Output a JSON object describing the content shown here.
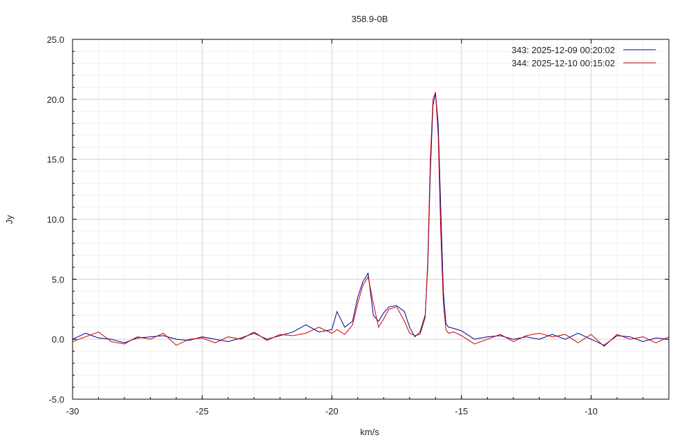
{
  "chart_data": {
    "type": "line",
    "title": "358.9-0B",
    "xlabel": "km/s",
    "ylabel": "Jy",
    "xlim": [
      -30,
      -7
    ],
    "ylim": [
      -5,
      25
    ],
    "x_ticks": [
      -30,
      -25,
      -20,
      -15,
      -10
    ],
    "x_tick_labels": [
      "-30",
      "-25",
      "-20",
      "-15",
      "-10"
    ],
    "y_ticks": [
      -5,
      0,
      5,
      10,
      15,
      20,
      25
    ],
    "y_tick_labels": [
      "-5.0",
      "0.0",
      "5.0",
      "10.0",
      "15.0",
      "20.0",
      "25.0"
    ],
    "grid": true,
    "legend_position": "top-right",
    "series": [
      {
        "name": "343:   2025-12-09 00:20:02",
        "color": "#00008b",
        "x": [
          -30.0,
          -29.5,
          -29.0,
          -28.5,
          -28.0,
          -27.5,
          -27.0,
          -26.5,
          -26.0,
          -25.5,
          -25.0,
          -24.5,
          -24.0,
          -23.5,
          -23.0,
          -22.5,
          -22.0,
          -21.5,
          -21.0,
          -20.5,
          -20.0,
          -19.8,
          -19.5,
          -19.2,
          -19.0,
          -18.8,
          -18.6,
          -18.4,
          -18.2,
          -18.0,
          -17.8,
          -17.5,
          -17.2,
          -17.0,
          -16.8,
          -16.6,
          -16.4,
          -16.3,
          -16.2,
          -16.1,
          -16.0,
          -15.9,
          -15.8,
          -15.7,
          -15.6,
          -15.5,
          -15.3,
          -15.0,
          -14.5,
          -14.0,
          -13.5,
          -13.0,
          -12.5,
          -12.0,
          -11.5,
          -11.0,
          -10.5,
          -10.0,
          -9.5,
          -9.0,
          -8.5,
          -8.0,
          -7.5,
          -7.0
        ],
        "y": [
          0.0,
          0.5,
          0.1,
          0.0,
          -0.3,
          0.1,
          0.2,
          0.3,
          0.0,
          -0.1,
          0.2,
          0.0,
          -0.2,
          0.1,
          0.5,
          0.0,
          0.3,
          0.6,
          1.2,
          0.6,
          0.8,
          2.3,
          1.0,
          1.5,
          3.5,
          4.8,
          5.5,
          2.0,
          1.5,
          2.2,
          2.7,
          2.8,
          2.3,
          1.0,
          0.2,
          0.6,
          2.0,
          6.0,
          14.0,
          19.5,
          20.5,
          18.0,
          11.0,
          4.0,
          1.3,
          1.0,
          0.9,
          0.7,
          0.0,
          0.2,
          0.3,
          0.0,
          0.2,
          0.0,
          0.4,
          0.0,
          0.5,
          0.0,
          -0.5,
          0.3,
          0.2,
          -0.2,
          0.1,
          0.0
        ]
      },
      {
        "name": "344:   2025-12-10 00:15:02",
        "color": "#cc0000",
        "x": [
          -30.0,
          -29.5,
          -29.0,
          -28.5,
          -28.0,
          -27.5,
          -27.0,
          -26.5,
          -26.0,
          -25.5,
          -25.0,
          -24.5,
          -24.0,
          -23.5,
          -23.0,
          -22.5,
          -22.0,
          -21.5,
          -21.0,
          -20.5,
          -20.0,
          -19.8,
          -19.5,
          -19.2,
          -19.0,
          -18.8,
          -18.6,
          -18.4,
          -18.2,
          -18.0,
          -17.8,
          -17.5,
          -17.2,
          -17.0,
          -16.8,
          -16.6,
          -16.4,
          -16.3,
          -16.2,
          -16.1,
          -16.0,
          -15.9,
          -15.8,
          -15.7,
          -15.6,
          -15.5,
          -15.3,
          -15.0,
          -14.5,
          -14.0,
          -13.5,
          -13.0,
          -12.5,
          -12.0,
          -11.5,
          -11.0,
          -10.5,
          -10.0,
          -9.5,
          -9.0,
          -8.5,
          -8.0,
          -7.5,
          -7.0
        ],
        "y": [
          -0.2,
          0.2,
          0.6,
          -0.2,
          -0.4,
          0.2,
          0.0,
          0.5,
          -0.5,
          0.0,
          0.1,
          -0.3,
          0.2,
          0.0,
          0.6,
          -0.1,
          0.4,
          0.3,
          0.5,
          1.0,
          0.5,
          0.8,
          0.4,
          1.2,
          3.0,
          4.5,
          5.2,
          3.0,
          1.0,
          1.7,
          2.5,
          2.7,
          1.5,
          0.5,
          0.3,
          0.4,
          1.8,
          6.5,
          15.0,
          20.0,
          20.6,
          17.0,
          9.0,
          3.0,
          0.8,
          0.5,
          0.6,
          0.3,
          -0.4,
          0.0,
          0.4,
          -0.2,
          0.3,
          0.5,
          0.2,
          0.4,
          -0.3,
          0.4,
          -0.6,
          0.4,
          0.0,
          0.2,
          -0.3,
          0.2
        ]
      }
    ]
  }
}
